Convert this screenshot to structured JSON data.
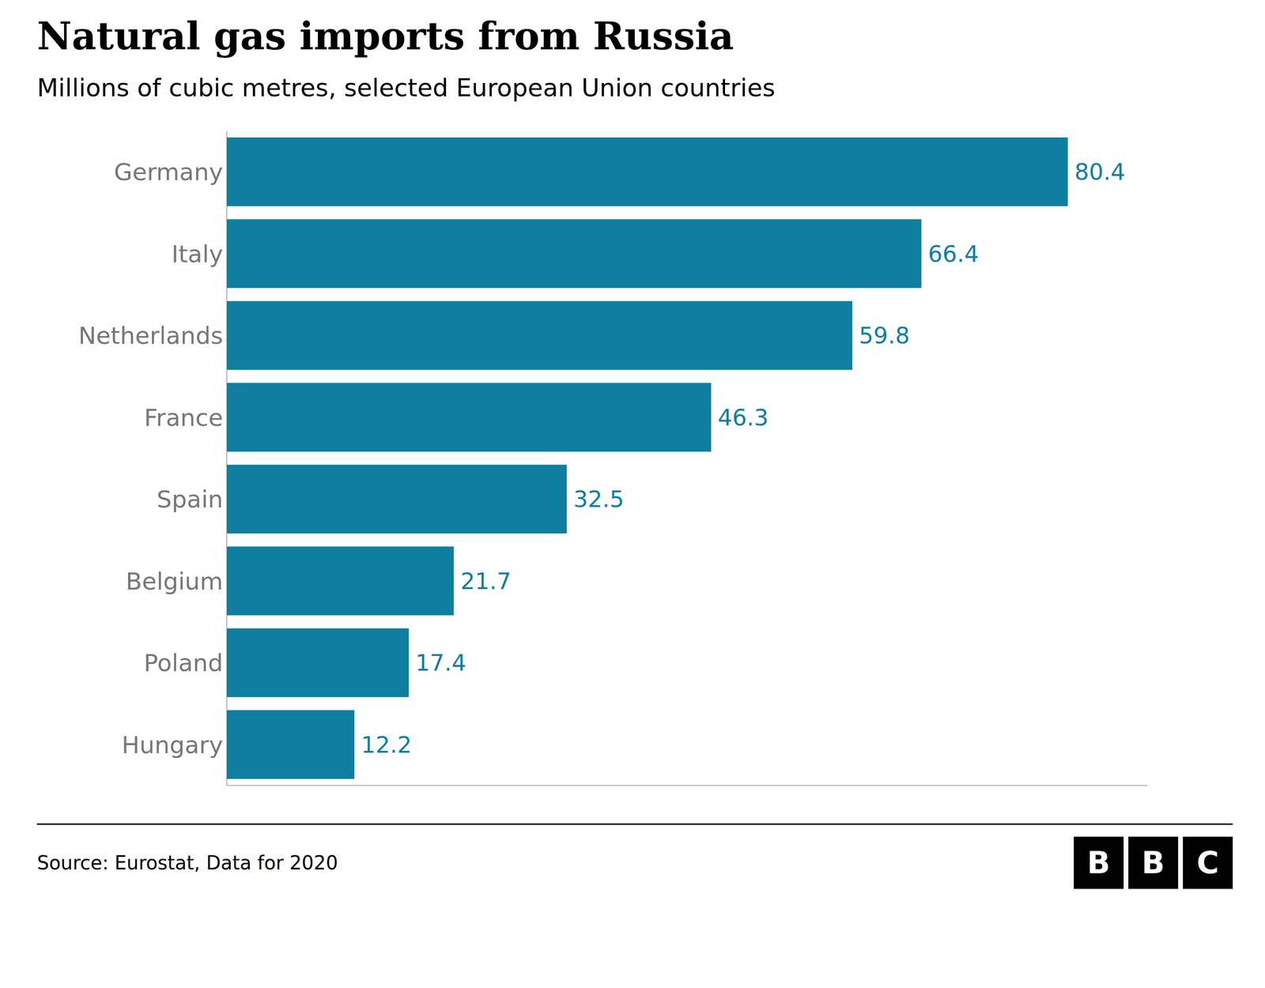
{
  "chart_data": {
    "type": "bar",
    "orientation": "horizontal",
    "title": "Natural gas imports from Russia",
    "subtitle": "Millions of cubic metres, selected European Union countries",
    "source": "Source: Eurostat, Data for 2020",
    "annotations": [
      "B",
      "B",
      "C"
    ],
    "categories": [
      "Germany",
      "Italy",
      "Netherlands",
      "France",
      "Spain",
      "Belgium",
      "Poland",
      "Hungary"
    ],
    "values": [
      80.4,
      66.4,
      59.8,
      46.3,
      32.5,
      21.7,
      17.4,
      12.2
    ],
    "color": "#0e7fa0",
    "xlim": [
      0,
      88
    ],
    "grid": false,
    "data_labels": true,
    "tick_labels": "y"
  }
}
